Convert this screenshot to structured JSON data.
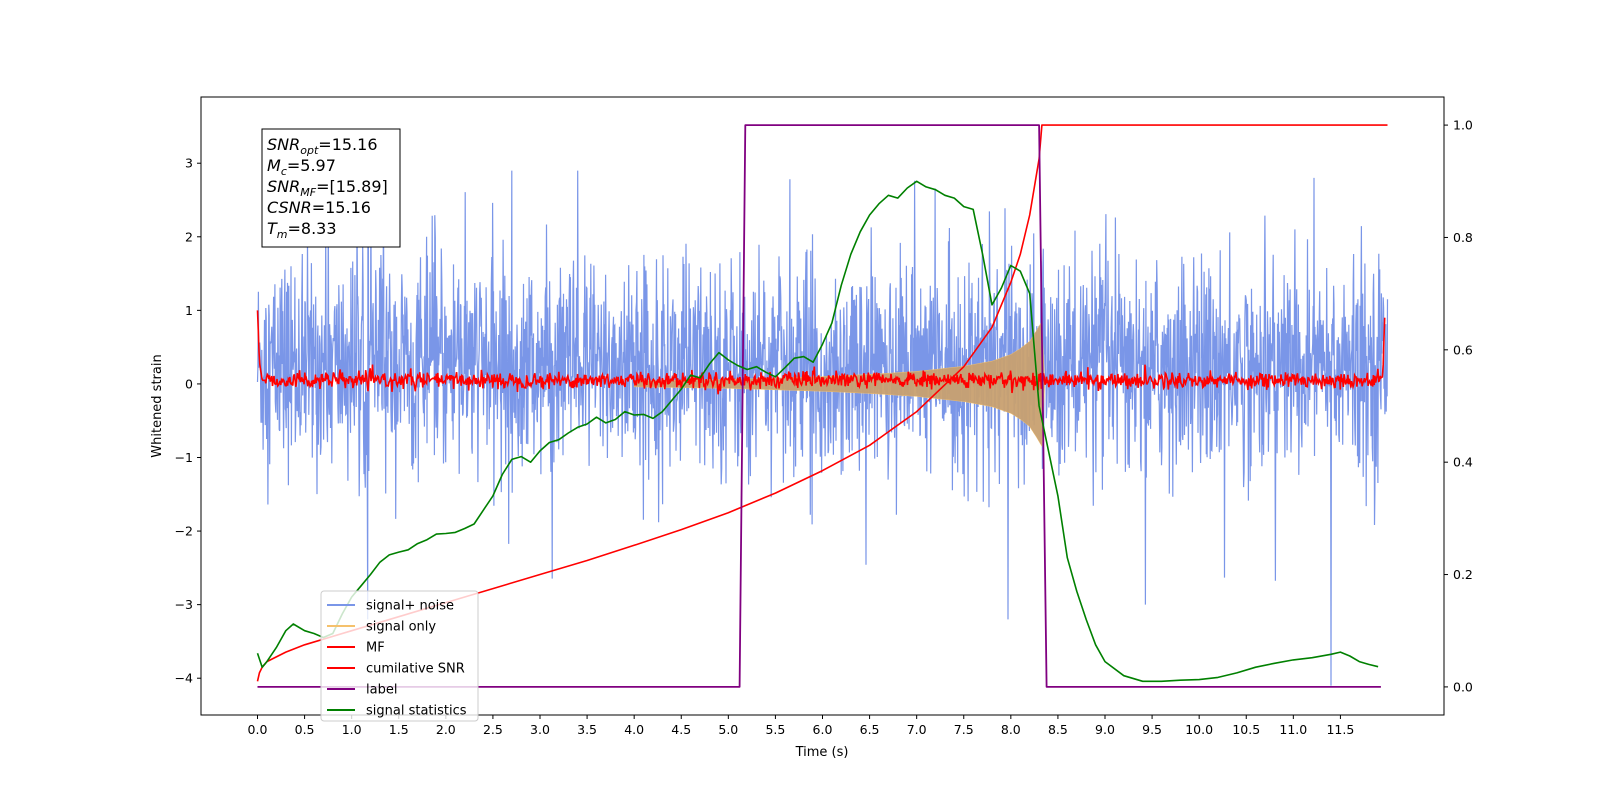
{
  "colors": {
    "signal_noise": "#7a96e8",
    "signal_only": "#f5c16c",
    "signal_only_fill": "#c8a070",
    "mf": "#ff0000",
    "cumulative_snr": "#ff0000",
    "label": "#800080",
    "signal_statistics": "#008000"
  },
  "chart_data": {
    "type": "line",
    "xlabel": "Time (s)",
    "ylabel": "Whitened strain",
    "xlim": [
      -0.6,
      12.6
    ],
    "ylim": [
      -4.5,
      3.9
    ],
    "y2lim": [
      -0.05,
      1.05
    ],
    "x_ticks": [
      0.0,
      0.5,
      1.0,
      1.5,
      2.0,
      2.5,
      3.0,
      3.5,
      4.0,
      4.5,
      5.0,
      5.5,
      6.0,
      6.5,
      7.0,
      7.5,
      8.0,
      8.5,
      9.0,
      9.5,
      10.0,
      10.5,
      11.0,
      11.5
    ],
    "x_tick_labels": [
      "0.0",
      "0.5",
      "1.0",
      "1.5",
      "2.0",
      "2.5",
      "3.0",
      "3.5",
      "4.0",
      "4.5",
      "5.0",
      "5.5",
      "6.0",
      "6.5",
      "7.0",
      "7.5",
      "8.0",
      "8.5",
      "9.0",
      "9.5",
      "10.0",
      "10.5",
      "11.0",
      "11.5"
    ],
    "y_ticks": [
      -4,
      -3,
      -2,
      -1,
      0,
      1,
      2,
      3
    ],
    "y_tick_labels": [
      "−4",
      "−3",
      "−2",
      "−1",
      "0",
      "1",
      "2",
      "3"
    ],
    "y2_ticks": [
      0.0,
      0.2,
      0.4,
      0.6,
      0.8,
      1.0
    ],
    "y2_tick_labels": [
      "0.0",
      "0.2",
      "0.4",
      "0.6",
      "0.8",
      "1.0"
    ],
    "grid": false,
    "legend_position": "lower-left",
    "legend": [
      "signal+ noise",
      "signal only",
      "MF",
      "cumilative SNR",
      "label",
      "signal statistics"
    ],
    "annotation": [
      {
        "base": "SNR",
        "sub": "opt",
        "value": "=15.16"
      },
      {
        "base": "M",
        "sub": "c",
        "value": "=5.97"
      },
      {
        "base": "SNR",
        "sub": "MF",
        "value": "=[15.89]"
      },
      {
        "base": "CSNR",
        "sub": "",
        "value": "=15.16"
      },
      {
        "base": "T",
        "sub": "m",
        "value": "=8.33"
      }
    ],
    "series": [
      {
        "name": "signal+ noise",
        "axis": "left",
        "description_kind": "noise_band",
        "x_range": [
          0.0,
          12.0
        ],
        "typical_range": [
          -1.3,
          1.8
        ],
        "extremes": [
          [
            1.17,
            -3.2
          ],
          [
            7.97,
            -3.2
          ],
          [
            11.4,
            -4.1
          ],
          [
            2.7,
            2.9
          ],
          [
            3.4,
            2.9
          ]
        ]
      },
      {
        "name": "signal only",
        "axis": "left",
        "envelope": {
          "x": [
            4.0,
            5.0,
            6.0,
            6.5,
            7.0,
            7.5,
            7.8,
            8.0,
            8.1,
            8.2,
            8.28,
            8.33,
            8.36
          ],
          "amp": [
            0.04,
            0.06,
            0.1,
            0.13,
            0.17,
            0.24,
            0.31,
            0.4,
            0.48,
            0.58,
            0.74,
            0.85,
            0.0
          ]
        }
      },
      {
        "name": "MF",
        "axis": "left",
        "points": [
          [
            0.0,
            1.0
          ],
          [
            0.02,
            0.3
          ],
          [
            0.05,
            0.05
          ],
          [
            0.1,
            0.05
          ],
          [
            11.9,
            0.05
          ],
          [
            11.95,
            0.1
          ],
          [
            11.97,
            0.9
          ]
        ],
        "noise_amplitude": 0.08
      },
      {
        "name": "cumilative SNR",
        "axis": "right",
        "x": [
          0.0,
          0.02,
          0.05,
          0.1,
          0.3,
          0.5,
          1.0,
          1.5,
          2.0,
          2.5,
          3.0,
          3.5,
          4.0,
          4.5,
          5.0,
          5.5,
          6.0,
          6.5,
          7.0,
          7.5,
          7.8,
          8.0,
          8.1,
          8.2,
          8.3,
          8.33,
          8.4,
          9.0,
          10.0,
          11.0,
          12.0
        ],
        "y": [
          0.01,
          0.025,
          0.035,
          0.045,
          0.062,
          0.075,
          0.1,
          0.125,
          0.15,
          0.175,
          0.2,
          0.225,
          0.252,
          0.28,
          0.31,
          0.345,
          0.385,
          0.43,
          0.49,
          0.57,
          0.64,
          0.72,
          0.77,
          0.84,
          0.94,
          1.0,
          1.0,
          1.0,
          1.0,
          1.0,
          1.0
        ]
      },
      {
        "name": "label",
        "axis": "right",
        "x": [
          0.0,
          5.12,
          5.18,
          8.3,
          8.38,
          11.93
        ],
        "y": [
          0.0,
          0.0,
          1.0,
          1.0,
          0.0,
          0.0
        ]
      },
      {
        "name": "signal statistics",
        "axis": "right",
        "x": [
          0.0,
          0.05,
          0.1,
          0.2,
          0.3,
          0.38,
          0.5,
          0.6,
          0.7,
          0.8,
          0.9,
          1.0,
          1.1,
          1.2,
          1.3,
          1.4,
          1.5,
          1.6,
          1.7,
          1.8,
          1.9,
          2.0,
          2.1,
          2.2,
          2.3,
          2.4,
          2.5,
          2.6,
          2.7,
          2.8,
          2.9,
          3.0,
          3.1,
          3.2,
          3.3,
          3.4,
          3.5,
          3.6,
          3.7,
          3.8,
          3.9,
          4.0,
          4.1,
          4.2,
          4.3,
          4.4,
          4.5,
          4.6,
          4.7,
          4.8,
          4.9,
          5.0,
          5.1,
          5.2,
          5.3,
          5.4,
          5.5,
          5.6,
          5.7,
          5.8,
          5.9,
          6.0,
          6.1,
          6.2,
          6.3,
          6.4,
          6.5,
          6.6,
          6.7,
          6.8,
          6.9,
          7.0,
          7.1,
          7.2,
          7.3,
          7.4,
          7.5,
          7.6,
          7.7,
          7.8,
          7.9,
          8.0,
          8.1,
          8.2,
          8.3,
          8.4,
          8.5,
          8.6,
          8.7,
          8.8,
          8.9,
          9.0,
          9.2,
          9.4,
          9.6,
          9.8,
          10.0,
          10.2,
          10.4,
          10.6,
          10.8,
          11.0,
          11.2,
          11.4,
          11.5,
          11.6,
          11.7,
          11.8,
          11.9
        ],
        "y": [
          0.06,
          0.035,
          0.045,
          0.07,
          0.1,
          0.112,
          0.1,
          0.095,
          0.088,
          0.095,
          0.13,
          0.16,
          0.18,
          0.2,
          0.222,
          0.235,
          0.24,
          0.244,
          0.255,
          0.262,
          0.272,
          0.273,
          0.275,
          0.282,
          0.29,
          0.315,
          0.34,
          0.378,
          0.405,
          0.41,
          0.4,
          0.42,
          0.435,
          0.44,
          0.452,
          0.462,
          0.468,
          0.48,
          0.47,
          0.476,
          0.49,
          0.484,
          0.485,
          0.478,
          0.49,
          0.51,
          0.53,
          0.555,
          0.55,
          0.575,
          0.595,
          0.582,
          0.572,
          0.565,
          0.57,
          0.56,
          0.552,
          0.568,
          0.585,
          0.588,
          0.578,
          0.61,
          0.648,
          0.715,
          0.77,
          0.81,
          0.84,
          0.86,
          0.875,
          0.87,
          0.888,
          0.9,
          0.89,
          0.885,
          0.875,
          0.87,
          0.855,
          0.85,
          0.77,
          0.68,
          0.71,
          0.75,
          0.74,
          0.7,
          0.5,
          0.42,
          0.34,
          0.23,
          0.17,
          0.12,
          0.075,
          0.045,
          0.02,
          0.01,
          0.01,
          0.012,
          0.013,
          0.017,
          0.025,
          0.035,
          0.042,
          0.048,
          0.052,
          0.058,
          0.062,
          0.055,
          0.045,
          0.04,
          0.036
        ]
      }
    ]
  }
}
